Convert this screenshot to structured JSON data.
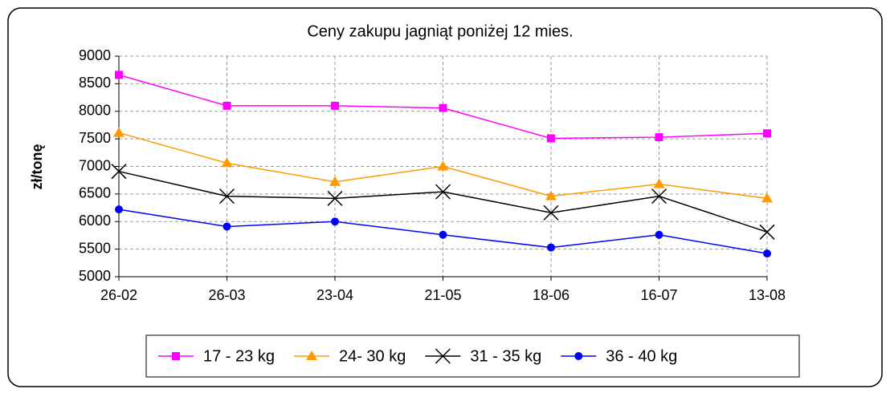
{
  "chart_data": {
    "type": "line",
    "title": "Ceny zakupu jagniąt poniżej 12 mies.",
    "y_label": "zł/tonę",
    "categories": [
      "26-02",
      "26-03",
      "23-04",
      "21-05",
      "18-06",
      "16-07",
      "13-08"
    ],
    "series": [
      {
        "name": "17 - 23 kg",
        "color": "#ff00ff",
        "marker": "square",
        "values": [
          8660,
          8100,
          8100,
          8060,
          7510,
          7530,
          7600
        ]
      },
      {
        "name": "24- 30 kg",
        "color": "#ff9900",
        "marker": "triangle",
        "values": [
          7610,
          7060,
          6720,
          7000,
          6460,
          6680,
          6420
        ]
      },
      {
        "name": "31 - 35 kg",
        "color": "#000000",
        "marker": "x",
        "values": [
          6910,
          6460,
          6420,
          6540,
          6160,
          6460,
          5810
        ]
      },
      {
        "name": "36 - 40 kg",
        "color": "#0000ff",
        "marker": "circle",
        "values": [
          6220,
          5910,
          6000,
          5760,
          5530,
          5760,
          5420
        ]
      }
    ],
    "ylim": [
      5000,
      9000
    ],
    "yticks": [
      5000,
      5500,
      6000,
      6500,
      7000,
      7500,
      8000,
      8500,
      9000
    ],
    "grid": true,
    "legend": "bottom"
  }
}
